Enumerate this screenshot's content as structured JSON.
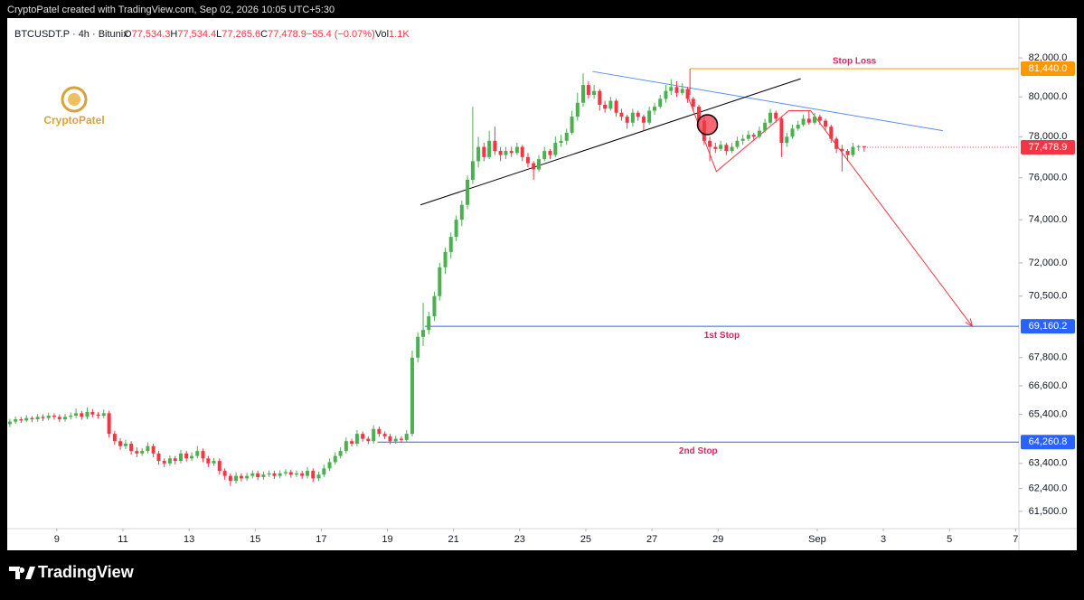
{
  "header": {
    "credit": "CryptoPatel created with TradingView.com, Sep 02, 2026 10:05 UTC+5:30"
  },
  "footer": {
    "brand": "TradingView"
  },
  "watermark": "CryptoPatel",
  "legend": {
    "symbol": "BTCUSDT.P · 4h · Bitunix",
    "items": [
      {
        "key": "O",
        "value": "77,534.3"
      },
      {
        "key": "H",
        "value": "77,534.4"
      },
      {
        "key": "L",
        "value": "77,265.6"
      },
      {
        "key": "C",
        "value": "77,478.9"
      }
    ],
    "change": "−55.4 (−0.07%)",
    "volume_key": "Vol",
    "volume": "1.1K"
  },
  "chart_data": {
    "type": "candlestick",
    "log_scale": true,
    "grid": false,
    "up_color": "#4caf50",
    "down_color": "#f23645",
    "xlim": [
      7.5,
      38.1
    ],
    "ylim": [
      60830,
      84100
    ],
    "xticks": [
      9,
      11,
      13,
      15,
      17,
      19,
      21,
      23,
      25,
      27,
      29,
      {
        "value": 32,
        "label": "Sep"
      },
      {
        "value": 34,
        "label": "3"
      },
      {
        "value": 36,
        "label": "5"
      },
      {
        "value": 38,
        "label": "7"
      }
    ],
    "yticks": [
      {
        "value": 82000,
        "label": "82,000.0"
      },
      {
        "value": 80000,
        "label": "80,000.0"
      },
      {
        "value": 78000,
        "label": "78,000.0"
      },
      {
        "value": 76000,
        "label": "76,000.0"
      },
      {
        "value": 74000,
        "label": "74,000.0"
      },
      {
        "value": 72000,
        "label": "72,000.0"
      },
      {
        "value": 70500,
        "label": "70,500.0"
      },
      {
        "value": 67800,
        "label": "67,800.0"
      },
      {
        "value": 66600,
        "label": "66,600.0"
      },
      {
        "value": 65400,
        "label": "65,400.0"
      },
      {
        "value": 63400,
        "label": "63,400.0"
      },
      {
        "value": 62400,
        "label": "62,400.0"
      },
      {
        "value": 61500,
        "label": "61,500.0"
      }
    ],
    "last_price_label": "77,478.9",
    "x": [
      7.58,
      7.75,
      7.92,
      8.08,
      8.25,
      8.42,
      8.58,
      8.75,
      8.92,
      9.08,
      9.25,
      9.42,
      9.58,
      9.75,
      9.92,
      10.08,
      10.25,
      10.42,
      10.58,
      10.75,
      10.92,
      11.08,
      11.25,
      11.42,
      11.58,
      11.75,
      11.92,
      12.08,
      12.25,
      12.42,
      12.58,
      12.75,
      12.92,
      13.08,
      13.25,
      13.42,
      13.58,
      13.75,
      13.92,
      14.08,
      14.25,
      14.42,
      14.58,
      14.75,
      14.92,
      15.08,
      15.25,
      15.42,
      15.58,
      15.75,
      15.92,
      16.08,
      16.25,
      16.42,
      16.58,
      16.75,
      16.92,
      17.08,
      17.25,
      17.42,
      17.58,
      17.75,
      17.92,
      18.08,
      18.25,
      18.42,
      18.58,
      18.75,
      18.92,
      19.08,
      19.25,
      19.42,
      19.58,
      19.75,
      19.92,
      20.08,
      20.25,
      20.42,
      20.58,
      20.75,
      20.92,
      21.08,
      21.25,
      21.42,
      21.58,
      21.75,
      21.92,
      22.08,
      22.25,
      22.42,
      22.58,
      22.75,
      22.92,
      23.08,
      23.25,
      23.42,
      23.58,
      23.75,
      23.92,
      24.08,
      24.25,
      24.42,
      24.58,
      24.75,
      24.92,
      25.08,
      25.25,
      25.42,
      25.58,
      25.75,
      25.92,
      26.08,
      26.25,
      26.42,
      26.58,
      26.75,
      26.92,
      27.08,
      27.25,
      27.42,
      27.58,
      27.75,
      27.92,
      28.08,
      28.25,
      28.42,
      28.58,
      28.75,
      28.92,
      29.08,
      29.25,
      29.42,
      29.58,
      29.75,
      29.92,
      30.08,
      30.25,
      30.42,
      30.58,
      30.75,
      30.92,
      31.08,
      31.25,
      31.42,
      31.58,
      31.75,
      31.92,
      32.08,
      32.25,
      32.42,
      32.58,
      32.75,
      32.92,
      33.08,
      33.25,
      33.42
    ],
    "candles": [
      [
        65000,
        65220,
        64880,
        65100
      ],
      [
        65100,
        65320,
        65000,
        65200
      ],
      [
        65200,
        65300,
        65050,
        65150
      ],
      [
        65150,
        65370,
        65080,
        65250
      ],
      [
        65250,
        65330,
        65080,
        65200
      ],
      [
        65200,
        65420,
        65100,
        65300
      ],
      [
        65300,
        65400,
        65130,
        65250
      ],
      [
        65250,
        65470,
        65150,
        65350
      ],
      [
        65350,
        65450,
        65180,
        65300
      ],
      [
        65300,
        65400,
        65080,
        65200
      ],
      [
        65200,
        65420,
        65100,
        65300
      ],
      [
        65300,
        65480,
        65200,
        65350
      ],
      [
        65350,
        65650,
        65250,
        65450
      ],
      [
        65450,
        65550,
        65180,
        65300
      ],
      [
        65300,
        65700,
        65200,
        65500
      ],
      [
        65500,
        65620,
        65280,
        65400
      ],
      [
        65400,
        65500,
        65230,
        65350
      ],
      [
        65350,
        65600,
        65250,
        65450
      ],
      [
        65450,
        65550,
        64450,
        64600
      ],
      [
        64600,
        64720,
        64150,
        64300
      ],
      [
        64300,
        64420,
        63950,
        64100
      ],
      [
        64100,
        64350,
        63980,
        64200
      ],
      [
        64200,
        64300,
        63750,
        63900
      ],
      [
        63900,
        64050,
        63650,
        63800
      ],
      [
        63800,
        64020,
        63700,
        63900
      ],
      [
        63900,
        64250,
        63800,
        64100
      ],
      [
        64100,
        64200,
        63650,
        63800
      ],
      [
        63800,
        63900,
        63350,
        63500
      ],
      [
        63500,
        63600,
        63250,
        63400
      ],
      [
        63400,
        63720,
        63300,
        63600
      ],
      [
        63600,
        63700,
        63350,
        63500
      ],
      [
        63500,
        63950,
        63400,
        63800
      ],
      [
        63800,
        63900,
        63480,
        63600
      ],
      [
        63600,
        63850,
        63500,
        63700
      ],
      [
        63700,
        64100,
        63600,
        63900
      ],
      [
        63900,
        64000,
        63450,
        63600
      ],
      [
        63600,
        63700,
        63250,
        63400
      ],
      [
        63400,
        63620,
        63300,
        63500
      ],
      [
        63500,
        63600,
        62950,
        63100
      ],
      [
        63100,
        63200,
        62750,
        62900
      ],
      [
        62900,
        63000,
        62500,
        62700
      ],
      [
        62700,
        63050,
        62600,
        62900
      ],
      [
        62900,
        63000,
        62680,
        62800
      ],
      [
        62800,
        63020,
        62700,
        62900
      ],
      [
        62900,
        63120,
        62800,
        63000
      ],
      [
        63000,
        63100,
        62730,
        62850
      ],
      [
        62850,
        63070,
        62750,
        62950
      ],
      [
        62950,
        63120,
        62850,
        63000
      ],
      [
        63000,
        63100,
        62780,
        62900
      ],
      [
        62900,
        63120,
        62800,
        63000
      ],
      [
        63000,
        63170,
        62900,
        63050
      ],
      [
        63050,
        63150,
        62830,
        62950
      ],
      [
        62950,
        63120,
        62850,
        63000
      ],
      [
        63000,
        63100,
        62780,
        62900
      ],
      [
        62900,
        63250,
        62800,
        63100
      ],
      [
        63100,
        63200,
        62650,
        62800
      ],
      [
        62800,
        63070,
        62700,
        62950
      ],
      [
        62950,
        63350,
        62850,
        63200
      ],
      [
        63200,
        63600,
        63100,
        63450
      ],
      [
        63450,
        63850,
        63350,
        63700
      ],
      [
        63700,
        64050,
        63600,
        63900
      ],
      [
        63900,
        64450,
        63800,
        64300
      ],
      [
        64300,
        64400,
        64080,
        64200
      ],
      [
        64200,
        64750,
        64100,
        64600
      ],
      [
        64600,
        64700,
        64280,
        64400
      ],
      [
        64400,
        64500,
        64180,
        64300
      ],
      [
        64300,
        64950,
        64200,
        64800
      ],
      [
        64800,
        64900,
        64480,
        64600
      ],
      [
        64600,
        64700,
        64380,
        64500
      ],
      [
        64500,
        64600,
        64180,
        64300
      ],
      [
        64300,
        64520,
        64200,
        64400
      ],
      [
        64400,
        64500,
        64230,
        64350
      ],
      [
        64350,
        64750,
        64250,
        64600
      ],
      [
        64600,
        68100,
        64500,
        67800
      ],
      [
        67800,
        68900,
        67600,
        68700
      ],
      [
        68700,
        70200,
        68300,
        69000
      ],
      [
        69000,
        69800,
        68800,
        69600
      ],
      [
        69600,
        70700,
        69400,
        70500
      ],
      [
        70500,
        72000,
        70300,
        71800
      ],
      [
        71800,
        72700,
        71500,
        72500
      ],
      [
        72500,
        73400,
        72200,
        73200
      ],
      [
        73200,
        74200,
        73000,
        74000
      ],
      [
        74000,
        74900,
        73700,
        74700
      ],
      [
        74700,
        76100,
        74500,
        75900
      ],
      [
        75900,
        79500,
        75700,
        76800
      ],
      [
        76800,
        78000,
        76500,
        77500
      ],
      [
        77500,
        77700,
        76800,
        77000
      ],
      [
        77000,
        78300,
        76900,
        77800
      ],
      [
        77800,
        78500,
        77100,
        77300
      ],
      [
        77300,
        77500,
        76800,
        77100
      ],
      [
        77100,
        77500,
        76900,
        77300
      ],
      [
        77300,
        77500,
        77000,
        77200
      ],
      [
        77200,
        77700,
        77100,
        77500
      ],
      [
        77500,
        77600,
        76800,
        77000
      ],
      [
        77000,
        77200,
        76500,
        76700
      ],
      [
        76700,
        76800,
        75900,
        76400
      ],
      [
        76400,
        77100,
        76300,
        76900
      ],
      [
        76900,
        77500,
        76800,
        77300
      ],
      [
        77300,
        77400,
        76900,
        77100
      ],
      [
        77100,
        78000,
        77000,
        77700
      ],
      [
        77700,
        78100,
        77500,
        77800
      ],
      [
        77800,
        78400,
        77600,
        78200
      ],
      [
        78200,
        79300,
        78100,
        79000
      ],
      [
        79000,
        80200,
        78800,
        79700
      ],
      [
        79700,
        81200,
        79500,
        80600
      ],
      [
        80600,
        80800,
        79900,
        80100
      ],
      [
        80100,
        80600,
        79900,
        80300
      ],
      [
        80300,
        80400,
        79300,
        79600
      ],
      [
        79600,
        79800,
        79200,
        79400
      ],
      [
        79400,
        80000,
        79300,
        79800
      ],
      [
        79800,
        79900,
        79000,
        79200
      ],
      [
        79200,
        79400,
        78800,
        79000
      ],
      [
        79000,
        79100,
        78400,
        78700
      ],
      [
        78700,
        79400,
        78500,
        79200
      ],
      [
        79200,
        79300,
        78800,
        79000
      ],
      [
        79000,
        79100,
        78300,
        78700
      ],
      [
        78700,
        79500,
        78600,
        79300
      ],
      [
        79300,
        79700,
        79100,
        79500
      ],
      [
        79500,
        80100,
        79400,
        79900
      ],
      [
        79900,
        80600,
        79700,
        80300
      ],
      [
        80300,
        80900,
        80100,
        80500
      ],
      [
        80500,
        80800,
        80000,
        80200
      ],
      [
        80200,
        80700,
        80100,
        80400
      ],
      [
        80400,
        80500,
        79700,
        79900
      ],
      [
        79900,
        80000,
        79300,
        79500
      ],
      [
        79500,
        79600,
        78600,
        78800
      ],
      [
        78800,
        79000,
        77600,
        77800
      ],
      [
        77800,
        78000,
        76800,
        77500
      ],
      [
        77500,
        77700,
        77200,
        77400
      ],
      [
        77400,
        77800,
        77300,
        77600
      ],
      [
        77600,
        77700,
        77100,
        77300
      ],
      [
        77300,
        77700,
        77200,
        77500
      ],
      [
        77500,
        78000,
        77400,
        77800
      ],
      [
        77800,
        78100,
        77600,
        77900
      ],
      [
        77900,
        78300,
        77800,
        78100
      ],
      [
        78100,
        78200,
        77800,
        78000
      ],
      [
        78000,
        78500,
        77900,
        78300
      ],
      [
        78300,
        78900,
        78200,
        78700
      ],
      [
        78700,
        79400,
        78600,
        79200
      ],
      [
        79200,
        79300,
        78700,
        78900
      ],
      [
        78900,
        79000,
        77000,
        77700
      ],
      [
        77700,
        78200,
        77500,
        78000
      ],
      [
        78000,
        78600,
        77900,
        78400
      ],
      [
        78400,
        78800,
        78300,
        78600
      ],
      [
        78600,
        79100,
        78500,
        78900
      ],
      [
        78900,
        79300,
        78600,
        78700
      ],
      [
        78700,
        79200,
        78600,
        79000
      ],
      [
        79000,
        79100,
        78600,
        78800
      ],
      [
        78800,
        78900,
        78300,
        78500
      ],
      [
        78500,
        78600,
        77700,
        77900
      ],
      [
        77900,
        78000,
        77200,
        77400
      ],
      [
        77400,
        77600,
        76300,
        77300
      ],
      [
        77300,
        77400,
        76800,
        77100
      ],
      [
        77100,
        77700,
        77000,
        77500
      ],
      [
        77500,
        77600,
        77300,
        77534.3
      ],
      [
        77534.3,
        77534.4,
        77265.6,
        77478.9
      ]
    ],
    "levels": [
      {
        "name": "Stop Loss",
        "value": 81440,
        "label": "81,440.0",
        "color": "#ff9800",
        "x_start": 28.15
      },
      {
        "name": "1st Stop",
        "value": 69160.2,
        "label": "69,160.2",
        "color": "#2962ff",
        "x_start": 20.13
      },
      {
        "name": "2nd Stop",
        "value": 64260.8,
        "label": "64,260.8",
        "color": "#2962ff",
        "x_start": 18.7
      }
    ],
    "trendlines": [
      {
        "color": "#5b8def",
        "x": [
          25.2,
          35.8
        ],
        "y": [
          81300,
          78300
        ]
      },
      {
        "color": "#000000",
        "x": [
          20.0,
          31.5
        ],
        "y": [
          74700,
          80926
        ]
      },
      {
        "color": "#f23645",
        "x": [
          28.07,
          28.95,
          31.14,
          31.8,
          36.69
        ],
        "y": [
          80100,
          76300,
          79300,
          79300,
          69160
        ]
      },
      {
        "color": "#f23645",
        "x": [
          28.15,
          28.15
        ],
        "y": [
          80100,
          81440
        ]
      }
    ],
    "markers": [
      {
        "x": 28.68,
        "y": 78600,
        "color": "#f23645"
      }
    ]
  }
}
